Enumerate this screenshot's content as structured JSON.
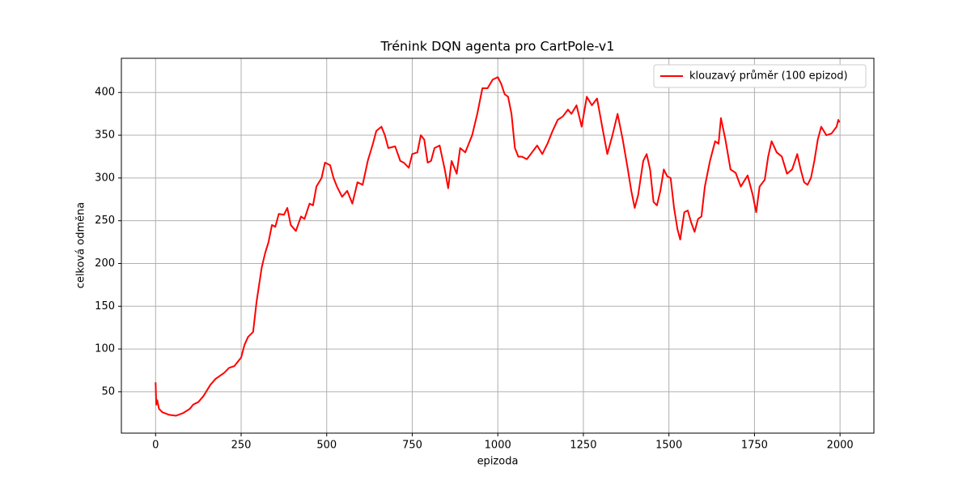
{
  "chart_data": {
    "type": "line",
    "title": "Trénink DQN agenta pro CartPole-v1",
    "xlabel": "epizoda",
    "ylabel": "celková odměna",
    "xlim": [
      -99.95,
      2098.95
    ],
    "ylim": [
      1.6,
      440
    ],
    "xticks": [
      0,
      250,
      500,
      750,
      1000,
      1250,
      1500,
      1750,
      2000
    ],
    "yticks": [
      50,
      100,
      150,
      200,
      250,
      300,
      350,
      400
    ],
    "grid": true,
    "legend": "upper right",
    "x": [
      0,
      2,
      5,
      10,
      20,
      40,
      60,
      80,
      100,
      110,
      125,
      140,
      160,
      175,
      200,
      215,
      230,
      250,
      260,
      270,
      285,
      295,
      310,
      320,
      330,
      340,
      350,
      360,
      375,
      385,
      395,
      410,
      425,
      435,
      450,
      460,
      470,
      485,
      495,
      510,
      520,
      530,
      545,
      560,
      575,
      590,
      605,
      620,
      635,
      645,
      660,
      670,
      680,
      700,
      715,
      725,
      740,
      750,
      765,
      775,
      785,
      795,
      805,
      815,
      830,
      845,
      855,
      865,
      880,
      890,
      905,
      915,
      925,
      940,
      955,
      970,
      985,
      1000,
      1010,
      1020,
      1030,
      1040,
      1050,
      1060,
      1070,
      1085,
      1100,
      1115,
      1130,
      1145,
      1160,
      1175,
      1190,
      1205,
      1215,
      1230,
      1245,
      1260,
      1275,
      1290,
      1305,
      1320,
      1335,
      1350,
      1365,
      1380,
      1390,
      1400,
      1410,
      1425,
      1435,
      1445,
      1455,
      1465,
      1475,
      1485,
      1495,
      1505,
      1515,
      1525,
      1533,
      1545,
      1555,
      1565,
      1575,
      1585,
      1595,
      1605,
      1620,
      1635,
      1645,
      1652,
      1665,
      1680,
      1695,
      1710,
      1730,
      1745,
      1755,
      1765,
      1780,
      1790,
      1800,
      1815,
      1830,
      1845,
      1860,
      1875,
      1885,
      1895,
      1905,
      1915,
      1925,
      1935,
      1945,
      1960,
      1975,
      1990,
      1995,
      1999
    ],
    "series": [
      {
        "name": "klouzavý průměr (100 epizod)",
        "color": "#ff0000",
        "values": [
          61,
          35,
          40,
          30,
          26,
          23,
          22,
          25,
          30,
          35,
          38,
          45,
          58,
          65,
          72,
          78,
          80,
          90,
          105,
          114,
          120,
          155,
          195,
          212,
          225,
          245,
          243,
          258,
          257,
          265,
          245,
          238,
          255,
          252,
          270,
          268,
          290,
          300,
          318,
          315,
          300,
          290,
          278,
          285,
          270,
          295,
          292,
          320,
          340,
          355,
          360,
          350,
          335,
          337,
          320,
          318,
          312,
          328,
          330,
          350,
          345,
          318,
          320,
          335,
          338,
          310,
          288,
          320,
          305,
          335,
          330,
          340,
          350,
          375,
          405,
          405,
          415,
          418,
          410,
          398,
          395,
          375,
          335,
          325,
          325,
          322,
          330,
          338,
          328,
          340,
          355,
          368,
          372,
          380,
          375,
          385,
          360,
          395,
          385,
          393,
          360,
          328,
          350,
          375,
          345,
          310,
          285,
          265,
          280,
          320,
          328,
          310,
          272,
          268,
          285,
          310,
          302,
          300,
          265,
          240,
          228,
          260,
          262,
          248,
          237,
          252,
          255,
          290,
          320,
          343,
          340,
          370,
          345,
          310,
          306,
          290,
          303,
          280,
          260,
          290,
          298,
          325,
          343,
          330,
          325,
          305,
          310,
          328,
          310,
          295,
          292,
          300,
          320,
          345,
          360,
          350,
          352,
          360,
          368,
          365
        ]
      }
    ]
  }
}
